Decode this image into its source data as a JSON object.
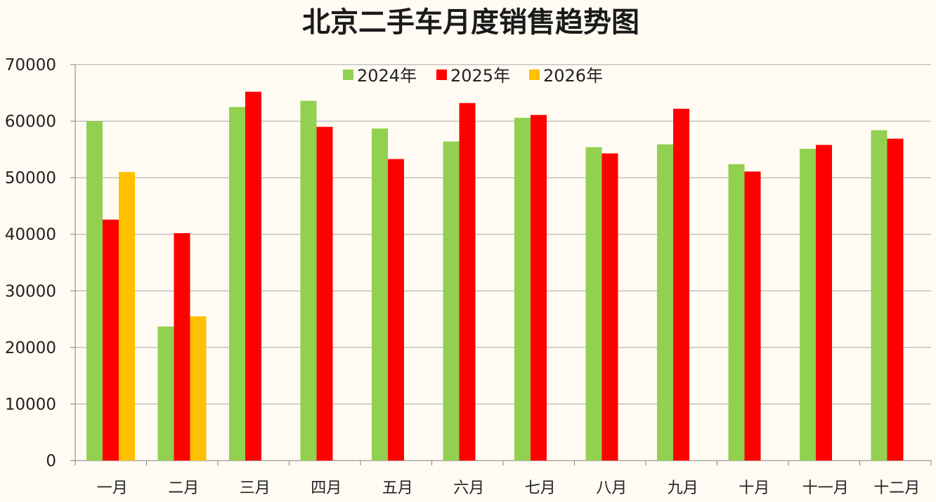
{
  "chart_data": {
    "type": "bar",
    "title": "北京二手车月度销售趋势图",
    "xlabel": "",
    "ylabel": "",
    "categories": [
      "一月",
      "二月",
      "三月",
      "四月",
      "五月",
      "六月",
      "七月",
      "八月",
      "九月",
      "十月",
      "十一月",
      "十二月"
    ],
    "series": [
      {
        "name": "2024年",
        "color": "#92d050",
        "values": [
          60000,
          23700,
          62500,
          63600,
          58700,
          56400,
          60600,
          55400,
          55900,
          52400,
          55100,
          58400
        ]
      },
      {
        "name": "2025年",
        "color": "#ff0000",
        "values": [
          42600,
          40200,
          65200,
          59000,
          53300,
          63200,
          61100,
          54300,
          62200,
          51100,
          55800,
          56900
        ]
      },
      {
        "name": "2026年",
        "color": "#ffc000",
        "values": [
          51000,
          25500,
          null,
          null,
          null,
          null,
          null,
          null,
          null,
          null,
          null,
          null
        ]
      }
    ],
    "ylim": [
      0,
      70000
    ],
    "yticks": [
      0,
      10000,
      20000,
      30000,
      40000,
      50000,
      60000,
      70000
    ],
    "grid": true,
    "legend_position": "top"
  }
}
